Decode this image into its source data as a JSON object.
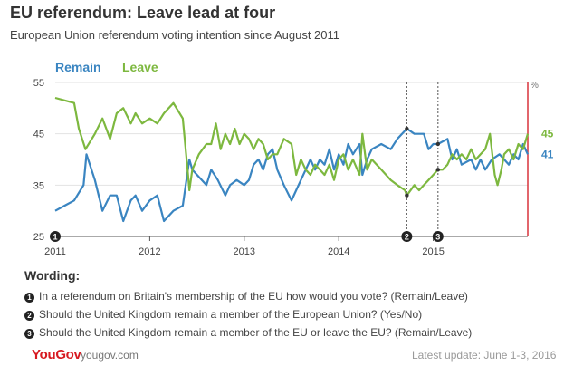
{
  "header": {
    "title": "EU referendum: Leave lead at four",
    "subtitle": "European Union referendum voting intention since August 2011"
  },
  "chart_data": {
    "type": "line",
    "title": "EU referendum: Leave lead at four",
    "subtitle": "European Union referendum voting intention since August 2011",
    "ylabel": "%",
    "ylim": [
      25,
      55
    ],
    "xlim": [
      2011.0,
      2016.0
    ],
    "y_ticks": [
      "25",
      "35",
      "45",
      "55"
    ],
    "x_ticks": [
      {
        "label": "2011",
        "value": 2011.0
      },
      {
        "label": "2012",
        "value": 2012.0
      },
      {
        "label": "2013",
        "value": 2013.0
      },
      {
        "label": "2014",
        "value": 2014.0
      },
      {
        "label": "2015",
        "value": 2015.0
      }
    ],
    "grid": "horizontal",
    "legend_position": "top-left",
    "series": [
      {
        "name": "Remain",
        "color": "#3a85c1",
        "end_label": "41",
        "points": [
          [
            2011.0,
            30
          ],
          [
            2011.1,
            31
          ],
          [
            2011.2,
            32
          ],
          [
            2011.3,
            35
          ],
          [
            2011.33,
            41
          ],
          [
            2011.42,
            36
          ],
          [
            2011.5,
            30
          ],
          [
            2011.58,
            33
          ],
          [
            2011.65,
            33
          ],
          [
            2011.72,
            28
          ],
          [
            2011.8,
            32
          ],
          [
            2011.85,
            33
          ],
          [
            2011.92,
            30
          ],
          [
            2012.0,
            32
          ],
          [
            2012.08,
            33
          ],
          [
            2012.15,
            28
          ],
          [
            2012.25,
            30
          ],
          [
            2012.35,
            31
          ],
          [
            2012.42,
            40
          ],
          [
            2012.45,
            38
          ],
          [
            2012.5,
            37
          ],
          [
            2012.6,
            35
          ],
          [
            2012.65,
            38
          ],
          [
            2012.72,
            36
          ],
          [
            2012.8,
            33
          ],
          [
            2012.85,
            35
          ],
          [
            2012.92,
            36
          ],
          [
            2013.0,
            35
          ],
          [
            2013.05,
            36
          ],
          [
            2013.1,
            39
          ],
          [
            2013.15,
            40
          ],
          [
            2013.2,
            38
          ],
          [
            2013.25,
            41
          ],
          [
            2013.3,
            42
          ],
          [
            2013.35,
            38
          ],
          [
            2013.42,
            35
          ],
          [
            2013.5,
            32
          ],
          [
            2013.55,
            34
          ],
          [
            2013.6,
            36
          ],
          [
            2013.65,
            38
          ],
          [
            2013.7,
            40
          ],
          [
            2013.75,
            38
          ],
          [
            2013.8,
            40
          ],
          [
            2013.85,
            39
          ],
          [
            2013.9,
            42
          ],
          [
            2013.95,
            38
          ],
          [
            2014.0,
            41
          ],
          [
            2014.05,
            39
          ],
          [
            2014.1,
            43
          ],
          [
            2014.15,
            41
          ],
          [
            2014.22,
            43
          ],
          [
            2014.25,
            37
          ],
          [
            2014.3,
            40
          ],
          [
            2014.35,
            42
          ],
          [
            2014.45,
            43
          ],
          [
            2014.55,
            42
          ],
          [
            2014.62,
            44
          ],
          [
            2014.72,
            46
          ],
          [
            2014.8,
            45
          ],
          [
            2014.9,
            45
          ],
          [
            2014.95,
            42
          ],
          [
            2015.0,
            43
          ],
          [
            2015.05,
            43
          ],
          [
            2015.15,
            44
          ],
          [
            2015.2,
            40
          ],
          [
            2015.25,
            42
          ],
          [
            2015.3,
            39
          ],
          [
            2015.4,
            40
          ],
          [
            2015.45,
            38
          ],
          [
            2015.5,
            40
          ],
          [
            2015.55,
            38
          ],
          [
            2015.62,
            40
          ],
          [
            2015.7,
            41
          ],
          [
            2015.75,
            40
          ],
          [
            2015.8,
            39
          ],
          [
            2015.85,
            41
          ],
          [
            2015.9,
            40
          ],
          [
            2015.95,
            43
          ],
          [
            2016.0,
            41
          ]
        ]
      },
      {
        "name": "Leave",
        "color": "#7db83f",
        "end_label": "45",
        "points": [
          [
            2011.0,
            52
          ],
          [
            2011.1,
            51.5
          ],
          [
            2011.2,
            51
          ],
          [
            2011.25,
            46
          ],
          [
            2011.32,
            42
          ],
          [
            2011.42,
            45
          ],
          [
            2011.5,
            48
          ],
          [
            2011.58,
            44
          ],
          [
            2011.65,
            49
          ],
          [
            2011.72,
            50
          ],
          [
            2011.8,
            47
          ],
          [
            2011.85,
            49
          ],
          [
            2011.92,
            47
          ],
          [
            2012.0,
            48
          ],
          [
            2012.08,
            47
          ],
          [
            2012.15,
            49
          ],
          [
            2012.25,
            51
          ],
          [
            2012.35,
            48
          ],
          [
            2012.4,
            38
          ],
          [
            2012.42,
            34
          ],
          [
            2012.45,
            38
          ],
          [
            2012.52,
            41
          ],
          [
            2012.6,
            43
          ],
          [
            2012.65,
            43
          ],
          [
            2012.7,
            47
          ],
          [
            2012.75,
            42
          ],
          [
            2012.8,
            45
          ],
          [
            2012.85,
            43
          ],
          [
            2012.9,
            46
          ],
          [
            2012.95,
            43
          ],
          [
            2013.0,
            45
          ],
          [
            2013.05,
            44
          ],
          [
            2013.1,
            42
          ],
          [
            2013.15,
            44
          ],
          [
            2013.2,
            43
          ],
          [
            2013.25,
            40
          ],
          [
            2013.3,
            41
          ],
          [
            2013.35,
            41
          ],
          [
            2013.42,
            44
          ],
          [
            2013.5,
            43
          ],
          [
            2013.55,
            37
          ],
          [
            2013.6,
            40
          ],
          [
            2013.65,
            38
          ],
          [
            2013.7,
            37
          ],
          [
            2013.75,
            39
          ],
          [
            2013.8,
            38
          ],
          [
            2013.85,
            37
          ],
          [
            2013.9,
            39
          ],
          [
            2013.95,
            36
          ],
          [
            2014.0,
            40
          ],
          [
            2014.05,
            41
          ],
          [
            2014.1,
            38
          ],
          [
            2014.15,
            40
          ],
          [
            2014.22,
            37
          ],
          [
            2014.25,
            45
          ],
          [
            2014.3,
            38
          ],
          [
            2014.35,
            40
          ],
          [
            2014.45,
            38
          ],
          [
            2014.55,
            36
          ],
          [
            2014.62,
            35
          ],
          [
            2014.7,
            34
          ],
          [
            2014.72,
            33
          ],
          [
            2014.8,
            35
          ],
          [
            2014.85,
            34
          ],
          [
            2014.9,
            35
          ],
          [
            2014.95,
            36
          ],
          [
            2015.0,
            37
          ],
          [
            2015.05,
            38
          ],
          [
            2015.1,
            38
          ],
          [
            2015.15,
            39
          ],
          [
            2015.2,
            41
          ],
          [
            2015.25,
            40
          ],
          [
            2015.3,
            41
          ],
          [
            2015.35,
            40
          ],
          [
            2015.4,
            42
          ],
          [
            2015.45,
            40
          ],
          [
            2015.5,
            41
          ],
          [
            2015.55,
            42
          ],
          [
            2015.6,
            45
          ],
          [
            2015.65,
            37
          ],
          [
            2015.68,
            35
          ],
          [
            2015.72,
            38
          ],
          [
            2015.75,
            41
          ],
          [
            2015.8,
            42
          ],
          [
            2015.85,
            40
          ],
          [
            2015.9,
            43
          ],
          [
            2015.95,
            42
          ],
          [
            2016.0,
            45
          ]
        ]
      }
    ],
    "markers": [
      {
        "label": "1",
        "x": 2011.0,
        "line": false
      },
      {
        "label": "2",
        "x": 2014.72,
        "line": true
      },
      {
        "label": "3",
        "x": 2015.05,
        "line": true
      }
    ],
    "right_border_color": "#d9343c"
  },
  "wording": {
    "title": "Wording:",
    "items": [
      {
        "num": "1",
        "text": "In a referendum on Britain's membership of the EU how would you vote? (Remain/Leave)"
      },
      {
        "num": "2",
        "text": "Should the United Kingdom remain a member of the European Union? (Yes/No)"
      },
      {
        "num": "3",
        "text": "Should the United Kingdom remain a member of the EU or leave the EU? (Remain/Leave)"
      }
    ]
  },
  "footer": {
    "logo": "YouGov",
    "url": "yougov.com",
    "update": "Latest update: June 1-3, 2016"
  }
}
